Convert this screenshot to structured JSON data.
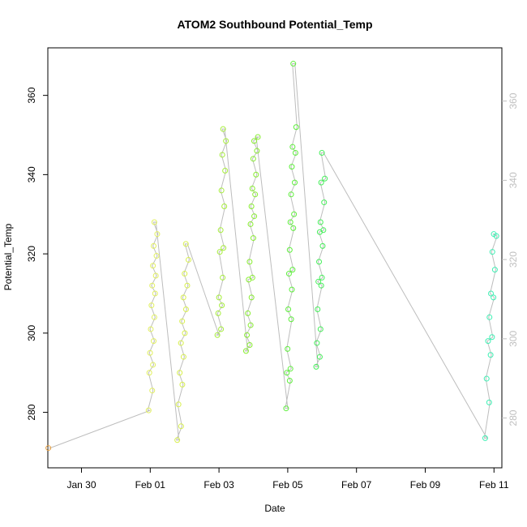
{
  "chart_data": {
    "type": "scatter",
    "title": "ATOM2 Southbound Potential_Temp",
    "xlabel": "Date",
    "ylabel": "Potential_Temp",
    "xlim": [
      "2025-01-29T00:30",
      "2025-02-11T05:30"
    ],
    "ylim": [
      266,
      372
    ],
    "x_ticks": [
      {
        "x": "2025-01-30T00:00",
        "label": "Jan 30"
      },
      {
        "x": "2025-02-01T00:00",
        "label": "Feb 01"
      },
      {
        "x": "2025-02-03T00:00",
        "label": "Feb 03"
      },
      {
        "x": "2025-02-05T00:00",
        "label": "Feb 05"
      },
      {
        "x": "2025-02-07T00:00",
        "label": "Feb 07"
      },
      {
        "x": "2025-02-09T00:00",
        "label": "Feb 09"
      },
      {
        "x": "2025-02-11T00:00",
        "label": "Feb 11"
      }
    ],
    "y_ticks_left": [
      280,
      300,
      320,
      340,
      360
    ],
    "y_ticks_right": [
      280,
      300,
      320,
      340,
      360
    ],
    "grid": false,
    "legend": "none",
    "colors": {
      "line": "#bdbdbd",
      "right_axis": "#bfbfbf",
      "axis": "#000000"
    },
    "profiles": [
      {
        "start": "2025-01-29T02:00",
        "end": "2025-01-29T02:00",
        "color": "#e8a040",
        "top": 271.0,
        "bottom": 271.0,
        "values": [
          271.0
        ]
      },
      {
        "start": "2025-02-01T00:00",
        "end": "2025-02-01T04:00",
        "color": "#e2f060",
        "top": 280.5,
        "bottom": 328.0,
        "values": [
          280.5,
          285.5,
          290.0,
          292.0,
          295.0,
          298.0,
          301.0,
          304.0,
          307.0,
          310.0,
          312.0,
          314.5,
          317.0,
          319.5,
          322.0,
          325.0,
          328.0
        ]
      },
      {
        "start": "2025-02-01T20:00",
        "end": "2025-02-02T02:00",
        "color": "#d8f04e",
        "top": 273.0,
        "bottom": 322.5,
        "values": [
          273.0,
          276.5,
          282.0,
          287.0,
          290.0,
          294.0,
          297.5,
          300.0,
          303.0,
          306.0,
          309.0,
          312.0,
          315.0,
          318.5,
          322.5
        ]
      },
      {
        "start": "2025-02-03T00:00",
        "end": "2025-02-03T04:00",
        "color": "#a6ee3a",
        "top": 299.5,
        "bottom": 351.5,
        "values": [
          299.5,
          301.0,
          305.0,
          307.0,
          309.0,
          314.0,
          320.5,
          321.5,
          326.0,
          332.0,
          336.0,
          341.0,
          345.0,
          348.5,
          351.5
        ]
      },
      {
        "start": "2025-02-03T20:00",
        "end": "2025-02-04T02:00",
        "color": "#88ee30",
        "top": 295.5,
        "bottom": 349.5,
        "values": [
          295.5,
          297.0,
          299.5,
          302.0,
          305.0,
          309.0,
          313.5,
          314.0,
          318.0,
          324.0,
          327.5,
          329.5,
          332.0,
          335.0,
          336.5,
          340.0,
          344.0,
          346.0,
          348.5,
          349.5
        ]
      },
      {
        "start": "2025-02-05T00:00",
        "end": "2025-02-05T05:00",
        "color": "#5ef03c",
        "top": 281.0,
        "bottom": 368.0,
        "values": [
          281.0,
          288.0,
          290.0,
          291.0,
          296.0,
          303.5,
          306.0,
          311.0,
          315.0,
          316.0,
          321.0,
          326.5,
          328.0,
          330.0,
          335.0,
          338.0,
          342.0,
          345.5,
          347.0,
          352.0,
          368.0
        ]
      },
      {
        "start": "2025-02-05T21:00",
        "end": "2025-02-06T01:00",
        "color": "#45f05a",
        "top": 291.5,
        "bottom": 345.5,
        "values": [
          291.5,
          294.0,
          297.5,
          301.0,
          306.0,
          312.0,
          313.0,
          314.0,
          318.0,
          322.0,
          325.5,
          326.0,
          328.0,
          333.0,
          338.0,
          339.0,
          345.5
        ]
      },
      {
        "start": "2025-02-10T19:00",
        "end": "2025-02-11T01:00",
        "color": "#3ff0b4",
        "top": 273.5,
        "bottom": 325.0,
        "values": [
          273.5,
          282.5,
          288.5,
          294.5,
          298.0,
          299.0,
          304.0,
          309.0,
          310.0,
          316.0,
          320.5,
          324.5,
          325.0
        ]
      }
    ]
  }
}
